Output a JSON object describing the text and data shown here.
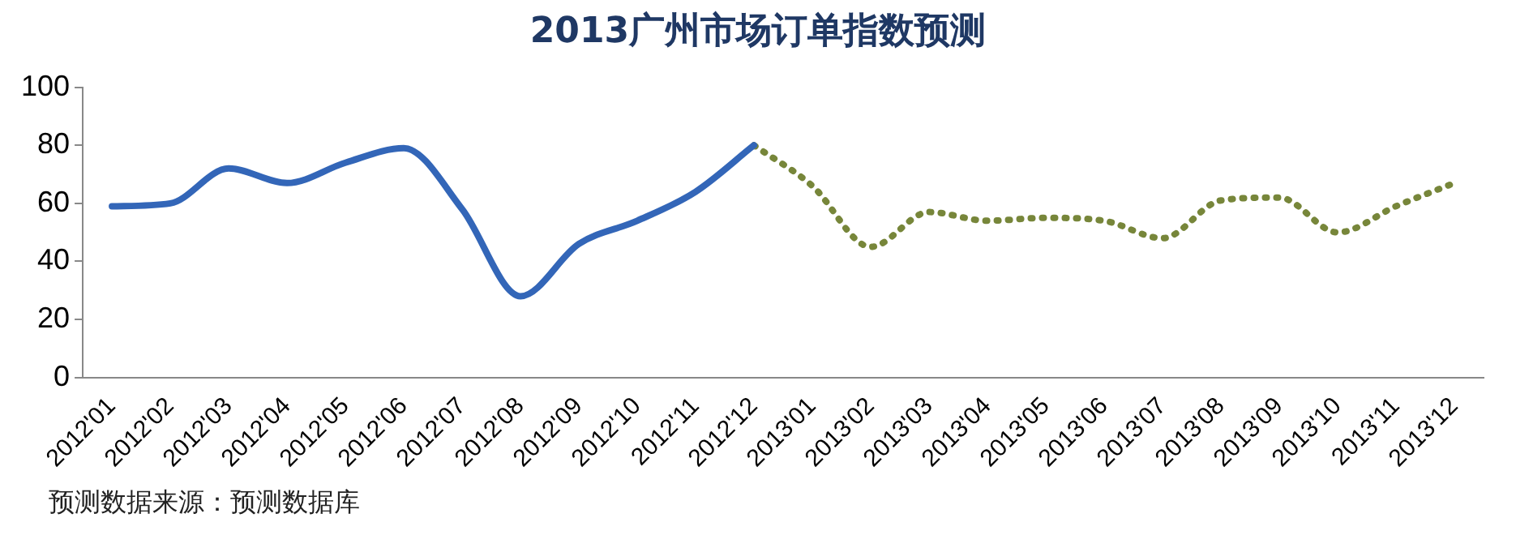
{
  "chart_data": {
    "type": "line",
    "title": "2013广州市场订单指数预测",
    "categories": [
      "2012'01",
      "2012'02",
      "2012'03",
      "2012'04",
      "2012'05",
      "2012'06",
      "2012'07",
      "2012'08",
      "2012'09",
      "2012'10",
      "2012'11",
      "2012'12",
      "2013'01",
      "2013'02",
      "2013'03",
      "2013'04",
      "2013'05",
      "2013'06",
      "2013'07",
      "2013'08",
      "2013'09",
      "2013'10",
      "2013'11",
      "2013'12"
    ],
    "series": [
      {
        "color": "#3366b8",
        "line_style": "solid",
        "values": [
          59,
          60,
          72,
          67,
          74,
          79,
          58,
          28,
          46,
          54,
          64,
          80,
          null,
          null,
          null,
          null,
          null,
          null,
          null,
          null,
          null,
          null,
          null,
          null
        ]
      },
      {
        "color": "#77863a",
        "line_style": "dotted",
        "values": [
          null,
          null,
          null,
          null,
          null,
          null,
          null,
          null,
          null,
          null,
          null,
          80,
          66,
          45,
          57,
          54,
          55,
          54,
          48,
          61,
          62,
          50,
          59,
          67
        ]
      }
    ],
    "ylim": [
      0,
      100
    ],
    "yticks": [
      0,
      20,
      40,
      60,
      80,
      100
    ],
    "grid": false,
    "legend": false,
    "marker": "none",
    "annotations": [
      "预测数据来源：预测数据库"
    ]
  }
}
